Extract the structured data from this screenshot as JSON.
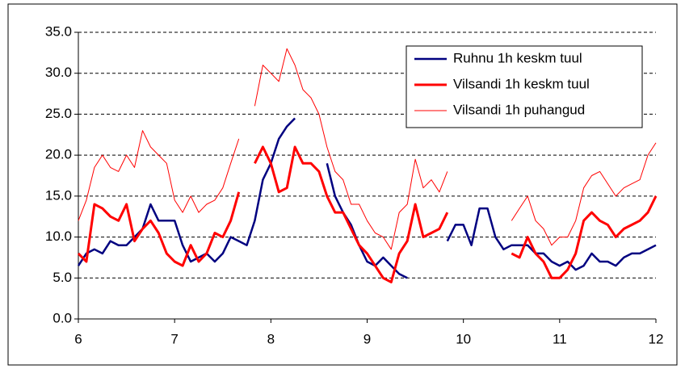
{
  "chart_data": {
    "type": "line",
    "x": [
      6,
      6.083,
      6.167,
      6.25,
      6.333,
      6.417,
      6.5,
      6.583,
      6.667,
      6.75,
      6.833,
      6.917,
      7,
      7.083,
      7.167,
      7.25,
      7.333,
      7.417,
      7.5,
      7.583,
      7.667,
      7.75,
      7.833,
      7.917,
      8,
      8.083,
      8.167,
      8.25,
      8.333,
      8.417,
      8.5,
      8.583,
      8.667,
      8.75,
      8.833,
      8.917,
      9,
      9.083,
      9.167,
      9.25,
      9.333,
      9.417,
      9.5,
      9.583,
      9.667,
      9.75,
      9.833,
      9.917,
      10,
      10.083,
      10.167,
      10.25,
      10.333,
      10.417,
      10.5,
      10.583,
      10.667,
      10.75,
      10.833,
      10.917,
      11,
      11.083,
      11.167,
      11.25,
      11.333,
      11.417,
      11.5,
      11.583,
      11.667,
      11.75,
      11.833,
      11.917,
      12
    ],
    "series": [
      {
        "name": "Ruhnu 1h keskm tuul",
        "color": "#000080",
        "width": 2.5,
        "values": [
          6.5,
          8,
          8.5,
          8,
          9.5,
          9,
          9,
          10,
          11,
          14,
          12,
          12,
          12,
          9,
          7,
          7.5,
          8,
          7,
          8,
          10,
          9.5,
          9,
          12,
          17,
          19,
          22,
          23.5,
          24.5,
          null,
          null,
          null,
          19,
          15,
          13,
          11.5,
          9,
          7,
          6.5,
          7.5,
          6.5,
          5.5,
          5,
          null,
          null,
          null,
          null,
          9.5,
          11.5,
          11.5,
          9,
          13.5,
          13.5,
          10,
          8.5,
          9,
          9,
          9,
          8,
          8,
          7,
          6.5,
          7,
          6,
          6.5,
          8,
          7,
          7,
          6.5,
          7.5,
          8,
          8,
          8.5,
          9
        ]
      },
      {
        "name": "Vilsandi 1h keskm tuul",
        "color": "#ff0000",
        "width": 3,
        "values": [
          8,
          7,
          14,
          13.5,
          12.5,
          12,
          14,
          9.5,
          11,
          12,
          10.5,
          8,
          7,
          6.5,
          9,
          7,
          8,
          10.5,
          10,
          12,
          15.5,
          null,
          19,
          21,
          19,
          15.5,
          16,
          21,
          19,
          19,
          18,
          15,
          13,
          13,
          11,
          9,
          8,
          6.5,
          5,
          4.5,
          8,
          9.5,
          14,
          10,
          10.5,
          11,
          13,
          null,
          null,
          null,
          null,
          null,
          null,
          null,
          8,
          7.5,
          10,
          8,
          7,
          5,
          5,
          6,
          8,
          12,
          13,
          12,
          11.5,
          10,
          11,
          11.5,
          12,
          13,
          15
        ]
      },
      {
        "name": "Vilsandi 1h puhangud",
        "color": "#ff0000",
        "width": 1,
        "values": [
          12,
          14.5,
          18.5,
          20,
          18.5,
          18,
          20,
          18.5,
          23,
          21,
          20,
          19,
          14.5,
          13,
          15,
          13,
          14,
          14.5,
          16,
          19,
          22,
          null,
          26,
          31,
          30,
          29,
          33,
          31,
          28,
          27,
          25,
          21,
          18,
          17,
          14,
          14,
          12,
          10.5,
          10,
          8.5,
          13,
          14,
          19.5,
          16,
          17,
          15.5,
          18,
          null,
          null,
          null,
          null,
          null,
          null,
          null,
          12,
          13.5,
          15,
          12,
          11,
          9,
          10,
          10,
          12,
          16,
          17.5,
          18,
          16.5,
          15,
          16,
          16.5,
          17,
          20,
          21.5
        ]
      }
    ],
    "xlim": [
      6,
      12
    ],
    "xticks": [
      6,
      7,
      8,
      9,
      10,
      11,
      12
    ],
    "ylim": [
      0,
      35
    ],
    "yticks": [
      {
        "value": 0,
        "label": "0.0"
      },
      {
        "value": 5,
        "label": "5.0"
      },
      {
        "value": 10,
        "label": "10.0"
      },
      {
        "value": 15,
        "label": "15.0"
      },
      {
        "value": 20,
        "label": "20.0"
      },
      {
        "value": 25,
        "label": "25.0"
      },
      {
        "value": 30,
        "label": "30.0"
      },
      {
        "value": 35,
        "label": "35.0"
      }
    ],
    "grid": true,
    "legend": "top-right"
  }
}
